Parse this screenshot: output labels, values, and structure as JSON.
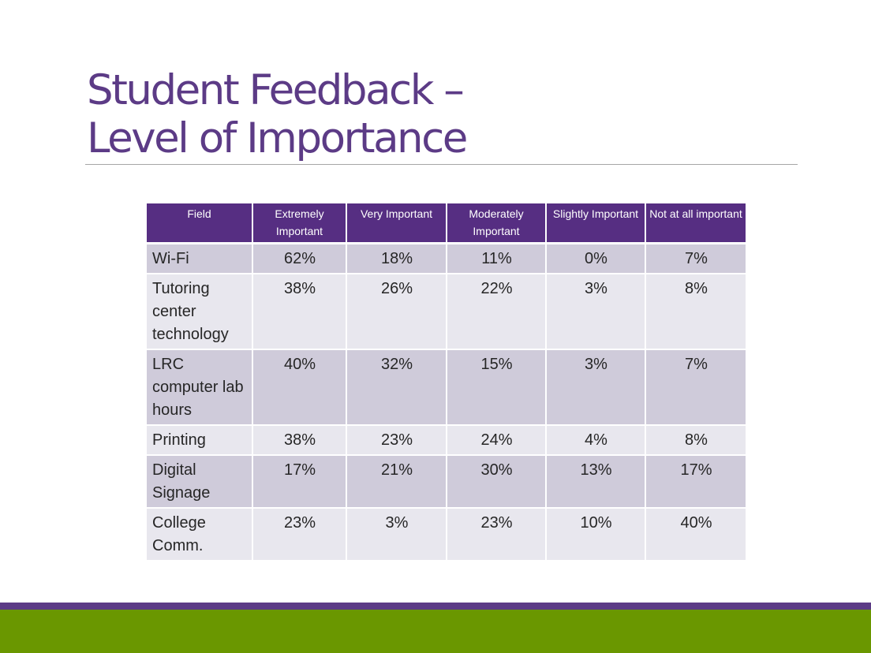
{
  "slide": {
    "title_line1": "Student Feedback –",
    "title_line2": "Level of Importance"
  },
  "table": {
    "headers": [
      "Field",
      "Extremely Important",
      "Very Important",
      "Moderately Important",
      "Slightly Important",
      "Not at all important"
    ],
    "rows": [
      {
        "field": "Wi-Fi",
        "values": [
          "62%",
          "18%",
          "11%",
          "0%",
          "7%"
        ]
      },
      {
        "field": "Tutoring center technology",
        "values": [
          "38%",
          "26%",
          "22%",
          "3%",
          "8%"
        ]
      },
      {
        "field": "LRC computer lab hours",
        "values": [
          "40%",
          "32%",
          "15%",
          "3%",
          "7%"
        ]
      },
      {
        "field": "Printing",
        "values": [
          "38%",
          "23%",
          "24%",
          "4%",
          "8%"
        ]
      },
      {
        "field": "Digital Signage",
        "values": [
          "17%",
          "21%",
          "30%",
          "13%",
          "17%"
        ]
      },
      {
        "field": "College Comm.",
        "values": [
          "23%",
          "3%",
          "23%",
          "10%",
          "40%"
        ]
      }
    ]
  },
  "colors": {
    "title": "#5c3b86",
    "header_fill": "#562e82",
    "row_odd": "#cfcbda",
    "row_even": "#e8e7ee",
    "footer_purple": "#5c3b86",
    "footer_green": "#6a9700"
  }
}
